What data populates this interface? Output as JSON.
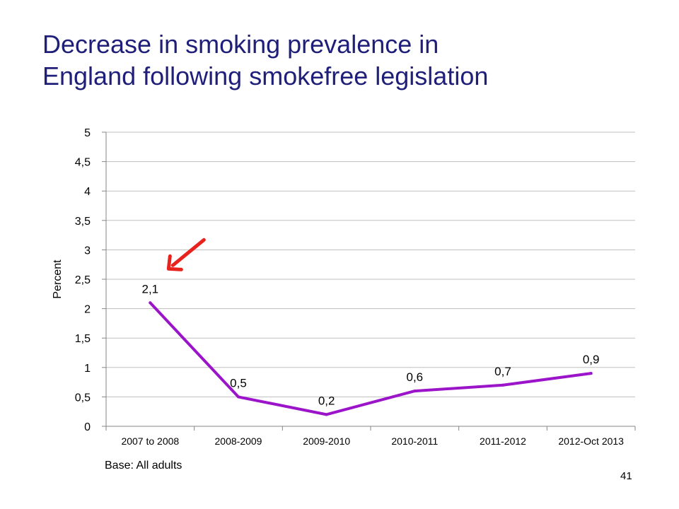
{
  "slide": {
    "title_line1": "Decrease in smoking prevalence in",
    "title_line2": "England following smokefree legislation",
    "base_note": "Base: All adults",
    "page_number": "41"
  },
  "colors": {
    "title": "#1f1f7a",
    "series_line": "#9b14c9",
    "arrow": "#e8231e",
    "gridline": "#bfbfbf",
    "axis": "#868686"
  },
  "chart_data": {
    "type": "line",
    "title": "",
    "xlabel": "",
    "ylabel": "Percent",
    "categories": [
      "2007 to 2008",
      "2008-2009",
      "2009-2010",
      "2010-2011",
      "2011-2012",
      "2012-Oct 2013"
    ],
    "series": [
      {
        "values": [
          2.1,
          0.5,
          0.2,
          0.6,
          0.7,
          0.9
        ]
      }
    ],
    "data_labels": [
      "2,1",
      "0,5",
      "0,2",
      "0,6",
      "0,7",
      "0,9"
    ],
    "ylim": [
      0,
      5
    ],
    "yticks": [
      0,
      0.5,
      1,
      1.5,
      2,
      2.5,
      3,
      3.5,
      4,
      4.5,
      5
    ],
    "ytick_labels": [
      "0",
      "0,5",
      "1",
      "1,5",
      "2",
      "2,5",
      "3",
      "3,5",
      "4",
      "4,5",
      "5"
    ],
    "grid": true,
    "legend": "none",
    "annotations": [
      {
        "type": "arrow",
        "points_to_category": "2007 to 2008",
        "color": "#e8231e"
      }
    ]
  }
}
